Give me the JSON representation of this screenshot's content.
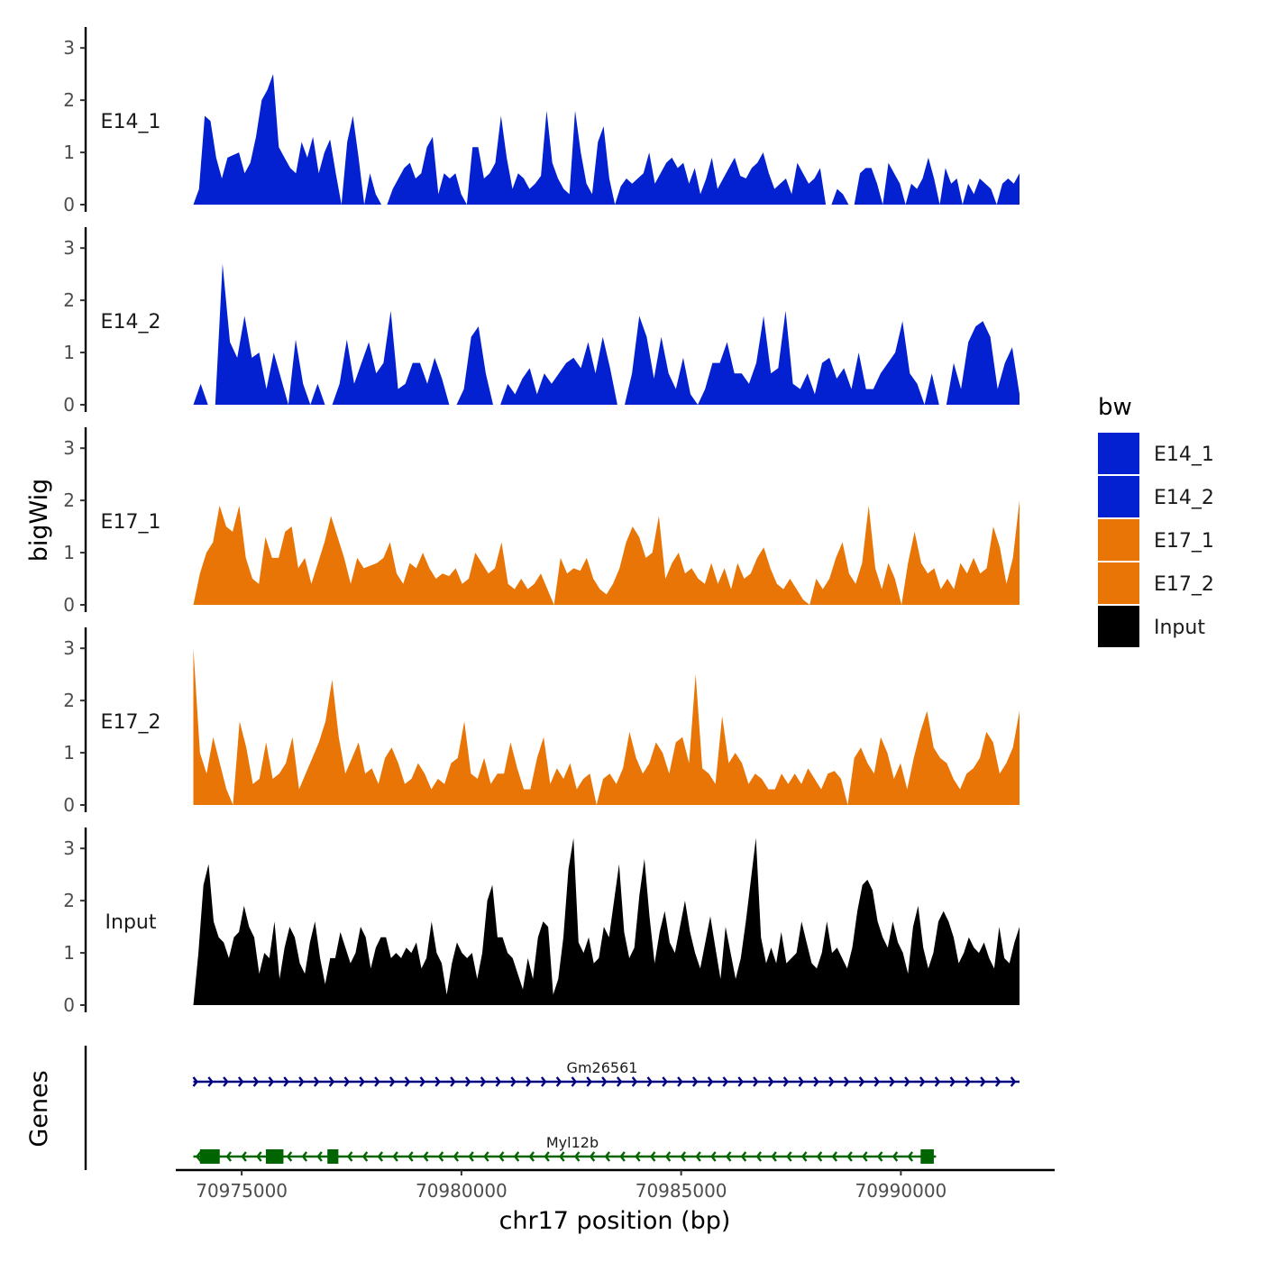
{
  "chart_data": {
    "type": "area",
    "y_axis_title": "bigWig",
    "x_axis_title": "chr17 position (bp)",
    "xlim": [
      70973500,
      70993500
    ],
    "x_ticks": [
      70975000,
      70980000,
      70985000,
      70990000
    ],
    "x_tick_labels": [
      "70975000",
      "70980000",
      "70985000",
      "70990000"
    ],
    "y_ticks": [
      0,
      1,
      2,
      3
    ],
    "y_tick_labels": [
      "0",
      "1",
      "2",
      "3"
    ],
    "ylim": [
      0,
      3.4
    ],
    "x_start": 70973900,
    "x_end": 70992700,
    "tracks": [
      {
        "name": "E14_1",
        "color": "#0320D1",
        "values": [
          0,
          0.3,
          1.7,
          1.6,
          0.9,
          0.5,
          0.9,
          0.95,
          1.0,
          0.6,
          0.8,
          1.3,
          2.0,
          2.2,
          2.5,
          1.1,
          0.9,
          0.7,
          0.6,
          1.2,
          0.9,
          1.3,
          0.6,
          1.0,
          1.25,
          0.6,
          0,
          1.2,
          1.7,
          0.9,
          0,
          0.6,
          0.2,
          0,
          0,
          0.3,
          0.5,
          0.7,
          0.8,
          0.5,
          0.6,
          1.1,
          1.3,
          0.2,
          0.6,
          0.5,
          0.6,
          0.2,
          0,
          1.1,
          1.1,
          0.5,
          0.6,
          0.8,
          1.7,
          0.9,
          0.3,
          0.6,
          0.5,
          0.3,
          0.4,
          0.55,
          1.8,
          0.8,
          0.5,
          0.3,
          0.2,
          1.8,
          1.0,
          0.4,
          0.2,
          1.2,
          1.5,
          0.5,
          0,
          0.35,
          0.5,
          0.4,
          0.5,
          0.6,
          1.0,
          0.4,
          0.6,
          0.8,
          0.9,
          0.7,
          0.8,
          0.4,
          0.7,
          0.2,
          0.5,
          0.9,
          0.3,
          0.5,
          0.7,
          0.9,
          0.55,
          0.5,
          0.7,
          0.8,
          1.0,
          0.6,
          0.3,
          0.4,
          0.5,
          0.2,
          0.8,
          0.6,
          0.4,
          0.5,
          0.7,
          0,
          0,
          0.3,
          0.2,
          0,
          0,
          0.6,
          0.7,
          0.7,
          0.4,
          0,
          0.8,
          0.6,
          0.4,
          0,
          0.4,
          0.3,
          0.5,
          0.9,
          0.5,
          0,
          0.7,
          0.4,
          0.5,
          0,
          0.4,
          0.2,
          0.5,
          0.4,
          0.3,
          0,
          0.4,
          0.5,
          0.4,
          0.6
        ]
      },
      {
        "name": "E14_2",
        "color": "#0320D1",
        "values": [
          0,
          0.4,
          0,
          0,
          2.7,
          1.2,
          0.9,
          1.7,
          0.9,
          1.0,
          0.3,
          1.0,
          0.5,
          0,
          1.25,
          0.4,
          0,
          0.4,
          0,
          0,
          0.4,
          1.25,
          0.4,
          0.8,
          1.2,
          0.6,
          0.8,
          1.8,
          0.3,
          0.4,
          0.8,
          0.8,
          0.4,
          0.9,
          0.5,
          0,
          0,
          0.3,
          1.3,
          1.5,
          0.6,
          0,
          0,
          0.4,
          0.2,
          0.5,
          0.7,
          0.2,
          0.6,
          0.4,
          0.6,
          0.8,
          0.9,
          0.7,
          1.2,
          0.6,
          1.3,
          0.7,
          0,
          0,
          0.6,
          1.7,
          1.3,
          0.5,
          1.3,
          0.6,
          0.3,
          0.9,
          0.2,
          0,
          0.3,
          0.8,
          0.8,
          1.2,
          0.6,
          0.6,
          0.4,
          0.8,
          1.7,
          0.6,
          0.7,
          1.8,
          0.4,
          0.3,
          0.6,
          0.2,
          0.8,
          0.9,
          0.5,
          0.7,
          0.3,
          1.0,
          0.3,
          0.3,
          0.6,
          0.8,
          1.0,
          1.6,
          0.6,
          0.4,
          0,
          0.6,
          0,
          0,
          0.8,
          0.3,
          1.2,
          1.5,
          1.6,
          1.3,
          0.3,
          0.8,
          1.1,
          0.2
        ]
      },
      {
        "name": "E17_1",
        "color": "#E87506",
        "values": [
          0,
          0.6,
          1.0,
          1.2,
          1.9,
          1.5,
          1.4,
          1.9,
          0.9,
          0.5,
          0.4,
          1.3,
          0.9,
          0.9,
          1.4,
          1.5,
          0.7,
          0.9,
          0.4,
          0.8,
          1.2,
          1.7,
          1.3,
          0.9,
          0.4,
          0.9,
          0.7,
          0.75,
          0.8,
          0.9,
          1.2,
          0.6,
          0.4,
          0.8,
          0.7,
          1.0,
          0.7,
          0.5,
          0.6,
          0.55,
          0.7,
          0.4,
          0.5,
          1.0,
          0.8,
          0.6,
          0.7,
          1.2,
          0.4,
          0.3,
          0.5,
          0.3,
          0.4,
          0.6,
          0.3,
          0,
          0.9,
          0.6,
          0.7,
          0.65,
          0.9,
          0.5,
          0.3,
          0.2,
          0.4,
          0.7,
          1.2,
          1.5,
          1.3,
          0.9,
          1.0,
          1.7,
          0.5,
          0.8,
          1.0,
          0.6,
          0.7,
          0.5,
          0.4,
          0.8,
          0.4,
          0.7,
          0.3,
          0.8,
          0.5,
          0.6,
          0.9,
          1.1,
          0.7,
          0.4,
          0.3,
          0.5,
          0.3,
          0.1,
          0,
          0.5,
          0.3,
          0.5,
          0.9,
          1.2,
          0.6,
          0.4,
          0.8,
          1.9,
          0.7,
          0.3,
          0.8,
          0.5,
          0,
          0.8,
          1.4,
          0.8,
          0.6,
          0.7,
          0.3,
          0.5,
          0.3,
          0.8,
          0.6,
          0.9,
          0.6,
          0.7,
          1.5,
          1.1,
          0.4,
          0.9,
          2.0
        ]
      },
      {
        "name": "E17_2",
        "color": "#E87506",
        "values": [
          3.0,
          1.0,
          0.6,
          1.3,
          0.8,
          0.3,
          0,
          1.6,
          1.1,
          0.4,
          0.5,
          1.2,
          0.5,
          0.6,
          0.8,
          1.3,
          0.3,
          0.6,
          0.9,
          1.2,
          1.6,
          2.4,
          1.3,
          0.6,
          0.9,
          1.2,
          0.6,
          0.7,
          0.4,
          0.9,
          1.1,
          0.8,
          0.4,
          0.5,
          0.8,
          0.6,
          0.3,
          0.5,
          0.4,
          0.8,
          0.9,
          1.6,
          0.6,
          0.5,
          0.9,
          0.4,
          0.6,
          0.6,
          1.2,
          0.7,
          0.3,
          0.3,
          0.9,
          1.3,
          0.4,
          0.7,
          0.5,
          0.8,
          0.3,
          0.5,
          0.6,
          0,
          0.5,
          0.6,
          0.4,
          0.7,
          1.4,
          0.9,
          0.6,
          0.8,
          1.2,
          1.0,
          0.6,
          1.2,
          1.3,
          0.8,
          2.5,
          0.7,
          0.6,
          0.4,
          1.7,
          0.8,
          1.0,
          0.8,
          0.4,
          0.6,
          0.5,
          0.3,
          0.3,
          0.6,
          0.4,
          0.6,
          0.4,
          0.7,
          0.5,
          0.3,
          0.6,
          0.65,
          0.5,
          0,
          0.9,
          1.1,
          0.8,
          0.6,
          1.3,
          1.0,
          0.5,
          0.8,
          0.3,
          0.9,
          1.4,
          1.8,
          1.1,
          0.9,
          0.8,
          0.5,
          0.3,
          0.6,
          0.7,
          0.9,
          1.4,
          1.2,
          0.6,
          0.8,
          1.1,
          1.8
        ]
      },
      {
        "name": "Input",
        "color": "#000000",
        "values": [
          0,
          1.0,
          2.3,
          2.7,
          1.6,
          1.3,
          1.2,
          0.9,
          1.3,
          1.4,
          1.9,
          1.5,
          1.3,
          0.6,
          1.0,
          0.9,
          1.6,
          0.5,
          1.1,
          1.5,
          1.3,
          0.8,
          0.6,
          1.2,
          1.6,
          0.9,
          0.4,
          0.9,
          0.9,
          1.4,
          1.1,
          0.8,
          1.0,
          1.5,
          1.3,
          0.7,
          1.1,
          1.3,
          1.3,
          0.9,
          1.0,
          0.9,
          1.1,
          1.0,
          1.2,
          0.7,
          0.9,
          1.6,
          1.0,
          0.8,
          0.2,
          0.8,
          1.2,
          1.0,
          0.9,
          1.0,
          0.5,
          1.0,
          2.0,
          2.3,
          1.3,
          1.3,
          1.0,
          0.9,
          0.6,
          0.3,
          0.9,
          0.5,
          1.3,
          1.6,
          1.5,
          0.2,
          0.5,
          1.3,
          2.6,
          3.2,
          1.2,
          1.0,
          1.3,
          0.8,
          0.9,
          1.5,
          1.3,
          2.0,
          2.7,
          1.4,
          0.9,
          1.1,
          2.1,
          2.8,
          1.7,
          0.8,
          1.4,
          1.8,
          1.2,
          1.0,
          1.5,
          2.0,
          1.4,
          1.0,
          0.7,
          1.2,
          1.7,
          1.1,
          0.5,
          1.5,
          1.0,
          0.5,
          0.9,
          1.6,
          2.4,
          3.2,
          1.3,
          0.8,
          1.1,
          0.8,
          1.4,
          0.8,
          0.9,
          1.0,
          1.6,
          1.2,
          0.8,
          0.7,
          1.0,
          1.6,
          1.0,
          1.1,
          0.9,
          0.7,
          1.1,
          1.8,
          2.3,
          2.4,
          2.2,
          1.6,
          1.3,
          1.1,
          1.6,
          1.2,
          1.0,
          0.6,
          1.5,
          1.9,
          1.1,
          0.7,
          1.0,
          1.6,
          1.8,
          1.6,
          1.3,
          0.8,
          1.0,
          1.3,
          1.1,
          1.0,
          1.2,
          0.9,
          0.7,
          1.5,
          0.9,
          0.8,
          1.2,
          1.5
        ]
      }
    ],
    "genes": [
      {
        "name": "Gm26561",
        "color": "#000080",
        "strand": "+",
        "start": 70973900,
        "end": 70992700,
        "exons": []
      },
      {
        "name": "Myl12b",
        "color": "#006400",
        "strand": "-",
        "start": 70973900,
        "end": 70990800,
        "exons": [
          [
            70974050,
            70974500
          ],
          [
            70975550,
            70975950
          ],
          [
            70976950,
            70977200
          ],
          [
            70990450,
            70990750
          ]
        ]
      }
    ],
    "genes_panel_title": "Genes",
    "legend": {
      "title": "bw",
      "items": [
        {
          "label": "E14_1",
          "color": "#0320D1"
        },
        {
          "label": "E14_2",
          "color": "#0320D1"
        },
        {
          "label": "E17_1",
          "color": "#E87506"
        },
        {
          "label": "E17_2",
          "color": "#E87506"
        },
        {
          "label": "Input",
          "color": "#000000"
        }
      ]
    }
  }
}
